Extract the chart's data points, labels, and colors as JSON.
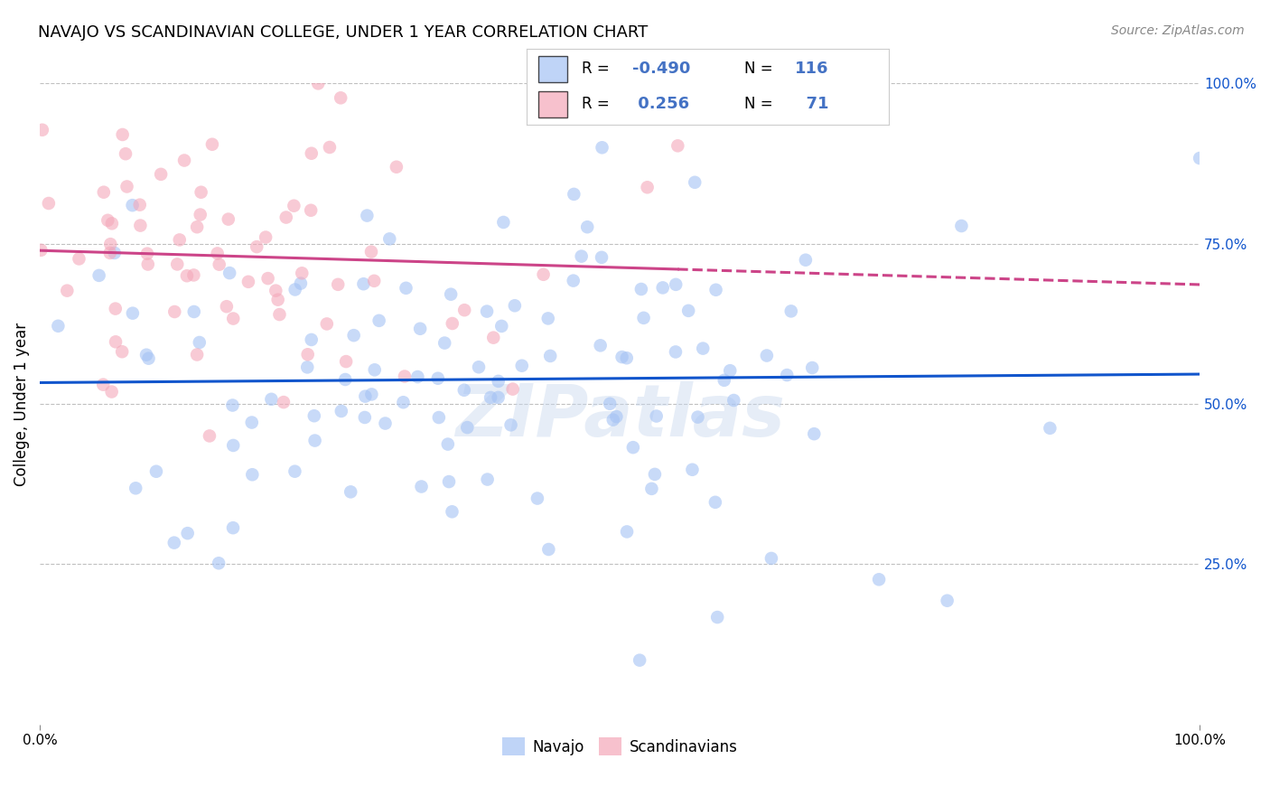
{
  "title": "NAVAJO VS SCANDINAVIAN COLLEGE, UNDER 1 YEAR CORRELATION CHART",
  "source": "Source: ZipAtlas.com",
  "ylabel": "College, Under 1 year",
  "xlim": [
    0.0,
    1.0
  ],
  "ylim": [
    0.0,
    1.0
  ],
  "navajo_R": -0.49,
  "navajo_N": 116,
  "scandinavian_R": 0.256,
  "scandinavian_N": 71,
  "navajo_color": "#a4c2f4",
  "scandinavian_color": "#f4a7b9",
  "navajo_line_color": "#1155cc",
  "scandinavian_line_color": "#cc4488",
  "watermark": "ZIPatlas",
  "legend_text_color": "#4472c4",
  "background_color": "#ffffff",
  "grid_color": "#c0c0c0",
  "title_fontsize": 13,
  "axis_fontsize": 11
}
